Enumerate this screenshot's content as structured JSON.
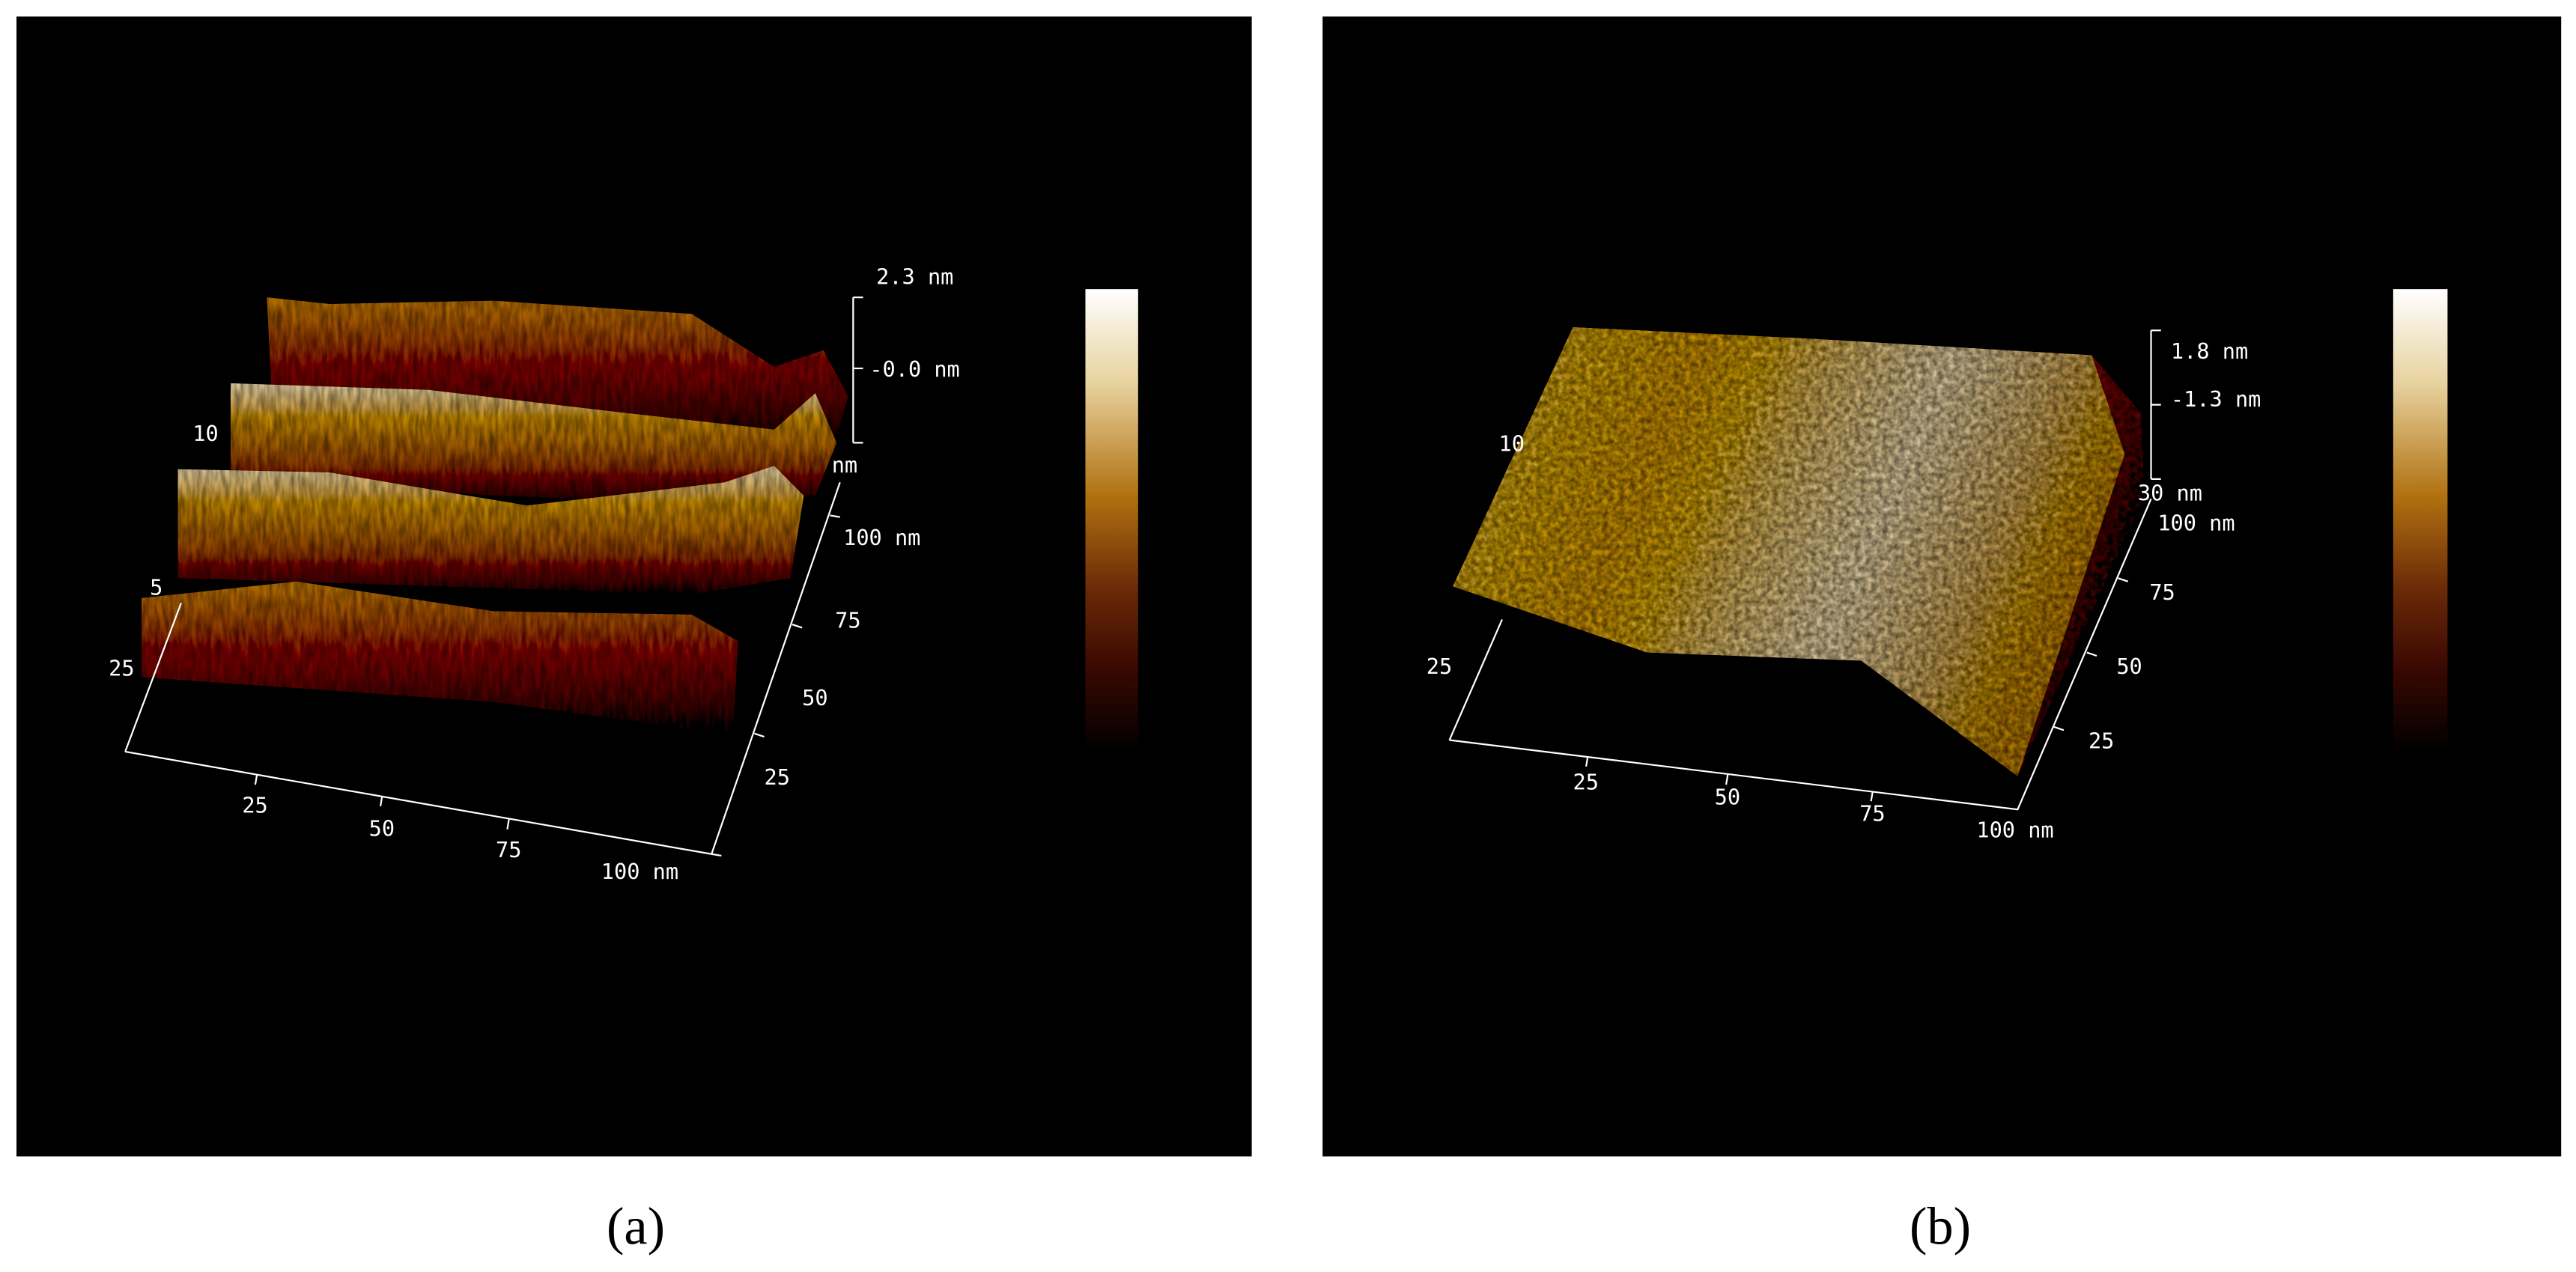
{
  "panels": [
    {
      "label": "(a)",
      "z_axis": [
        "2.3 nm",
        "-0.0 nm",
        "nm"
      ],
      "y_axis": [
        "100 nm",
        "75",
        "50",
        "25"
      ],
      "x_axis": [
        "25",
        "50",
        "75",
        "100 nm"
      ],
      "left_axis": [
        "10",
        "5",
        "25"
      ]
    },
    {
      "label": "(b)",
      "z_axis": [
        "1.8 nm",
        "-1.3 nm",
        "30 nm"
      ],
      "y_axis": [
        "100 nm",
        "75",
        "50",
        "25"
      ],
      "x_axis": [
        "25",
        "50",
        "75",
        "100 nm"
      ],
      "left_axis": [
        "10",
        "25"
      ]
    }
  ]
}
